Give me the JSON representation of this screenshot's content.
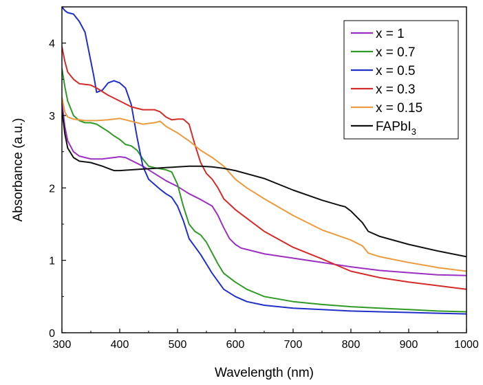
{
  "chart_data": {
    "type": "line",
    "title": "",
    "xlabel": "Wavelength (nm)",
    "ylabel": "Absorbance (a.u.)",
    "xlim": [
      300,
      1000
    ],
    "ylim": [
      0,
      4.5
    ],
    "x_ticks": [
      300,
      400,
      500,
      600,
      700,
      800,
      900,
      1000
    ],
    "y_ticks": [
      0,
      1,
      2,
      3,
      4
    ],
    "grid": false,
    "legend_position": "top-right",
    "series": [
      {
        "name": "x = 1",
        "color": "#9b2fc1",
        "points": [
          [
            300,
            3.18
          ],
          [
            305,
            2.85
          ],
          [
            310,
            2.65
          ],
          [
            320,
            2.5
          ],
          [
            330,
            2.44
          ],
          [
            340,
            2.42
          ],
          [
            350,
            2.4
          ],
          [
            360,
            2.4
          ],
          [
            370,
            2.4
          ],
          [
            380,
            2.41
          ],
          [
            390,
            2.42
          ],
          [
            400,
            2.43
          ],
          [
            410,
            2.42
          ],
          [
            420,
            2.38
          ],
          [
            440,
            2.3
          ],
          [
            460,
            2.2
          ],
          [
            480,
            2.1
          ],
          [
            500,
            2.02
          ],
          [
            520,
            1.92
          ],
          [
            540,
            1.84
          ],
          [
            560,
            1.75
          ],
          [
            570,
            1.62
          ],
          [
            580,
            1.45
          ],
          [
            590,
            1.3
          ],
          [
            600,
            1.22
          ],
          [
            610,
            1.17
          ],
          [
            630,
            1.13
          ],
          [
            650,
            1.09
          ],
          [
            700,
            1.03
          ],
          [
            750,
            0.97
          ],
          [
            800,
            0.91
          ],
          [
            850,
            0.86
          ],
          [
            900,
            0.83
          ],
          [
            950,
            0.8
          ],
          [
            1000,
            0.79
          ]
        ]
      },
      {
        "name": "x = 0.7",
        "color": "#2e9a25",
        "points": [
          [
            300,
            3.65
          ],
          [
            305,
            3.4
          ],
          [
            310,
            3.2
          ],
          [
            320,
            3.0
          ],
          [
            330,
            2.93
          ],
          [
            340,
            2.9
          ],
          [
            350,
            2.9
          ],
          [
            360,
            2.88
          ],
          [
            370,
            2.83
          ],
          [
            380,
            2.78
          ],
          [
            390,
            2.72
          ],
          [
            400,
            2.67
          ],
          [
            410,
            2.6
          ],
          [
            420,
            2.58
          ],
          [
            430,
            2.52
          ],
          [
            440,
            2.4
          ],
          [
            450,
            2.3
          ],
          [
            460,
            2.28
          ],
          [
            480,
            2.25
          ],
          [
            490,
            2.22
          ],
          [
            500,
            2.05
          ],
          [
            510,
            1.75
          ],
          [
            520,
            1.5
          ],
          [
            530,
            1.4
          ],
          [
            540,
            1.35
          ],
          [
            550,
            1.25
          ],
          [
            560,
            1.1
          ],
          [
            570,
            0.95
          ],
          [
            580,
            0.82
          ],
          [
            600,
            0.7
          ],
          [
            620,
            0.6
          ],
          [
            650,
            0.5
          ],
          [
            700,
            0.43
          ],
          [
            750,
            0.39
          ],
          [
            800,
            0.36
          ],
          [
            850,
            0.34
          ],
          [
            900,
            0.32
          ],
          [
            950,
            0.3
          ],
          [
            1000,
            0.29
          ]
        ]
      },
      {
        "name": "x = 0.5",
        "color": "#1f2fc8",
        "points": [
          [
            300,
            4.5
          ],
          [
            305,
            4.45
          ],
          [
            310,
            4.42
          ],
          [
            320,
            4.4
          ],
          [
            330,
            4.3
          ],
          [
            340,
            4.15
          ],
          [
            345,
            3.95
          ],
          [
            350,
            3.75
          ],
          [
            355,
            3.55
          ],
          [
            360,
            3.32
          ],
          [
            370,
            3.35
          ],
          [
            380,
            3.45
          ],
          [
            390,
            3.48
          ],
          [
            400,
            3.45
          ],
          [
            410,
            3.38
          ],
          [
            420,
            3.15
          ],
          [
            430,
            2.7
          ],
          [
            440,
            2.3
          ],
          [
            450,
            2.12
          ],
          [
            460,
            2.05
          ],
          [
            470,
            1.98
          ],
          [
            480,
            1.92
          ],
          [
            490,
            1.87
          ],
          [
            500,
            1.75
          ],
          [
            510,
            1.55
          ],
          [
            520,
            1.3
          ],
          [
            540,
            1.08
          ],
          [
            560,
            0.82
          ],
          [
            580,
            0.6
          ],
          [
            600,
            0.5
          ],
          [
            620,
            0.43
          ],
          [
            650,
            0.38
          ],
          [
            700,
            0.34
          ],
          [
            750,
            0.32
          ],
          [
            800,
            0.3
          ],
          [
            850,
            0.29
          ],
          [
            900,
            0.28
          ],
          [
            950,
            0.27
          ],
          [
            1000,
            0.26
          ]
        ]
      },
      {
        "name": "x = 0.3",
        "color": "#d42a28",
        "points": [
          [
            300,
            3.95
          ],
          [
            305,
            3.75
          ],
          [
            310,
            3.6
          ],
          [
            320,
            3.5
          ],
          [
            330,
            3.44
          ],
          [
            340,
            3.43
          ],
          [
            350,
            3.42
          ],
          [
            360,
            3.38
          ],
          [
            380,
            3.28
          ],
          [
            400,
            3.2
          ],
          [
            420,
            3.12
          ],
          [
            440,
            3.08
          ],
          [
            460,
            3.08
          ],
          [
            470,
            3.05
          ],
          [
            480,
            2.98
          ],
          [
            490,
            2.94
          ],
          [
            500,
            2.95
          ],
          [
            510,
            2.95
          ],
          [
            520,
            2.88
          ],
          [
            530,
            2.6
          ],
          [
            540,
            2.35
          ],
          [
            550,
            2.2
          ],
          [
            560,
            2.12
          ],
          [
            570,
            2.0
          ],
          [
            580,
            1.85
          ],
          [
            600,
            1.7
          ],
          [
            620,
            1.58
          ],
          [
            650,
            1.4
          ],
          [
            700,
            1.18
          ],
          [
            750,
            1.02
          ],
          [
            800,
            0.85
          ],
          [
            850,
            0.76
          ],
          [
            900,
            0.7
          ],
          [
            950,
            0.65
          ],
          [
            1000,
            0.6
          ]
        ]
      },
      {
        "name": "x = 0.15",
        "color": "#eb9a3c",
        "points": [
          [
            300,
            3.25
          ],
          [
            305,
            3.05
          ],
          [
            310,
            2.98
          ],
          [
            320,
            2.95
          ],
          [
            340,
            2.93
          ],
          [
            360,
            2.93
          ],
          [
            380,
            2.94
          ],
          [
            400,
            2.96
          ],
          [
            420,
            2.92
          ],
          [
            440,
            2.88
          ],
          [
            460,
            2.9
          ],
          [
            470,
            2.92
          ],
          [
            480,
            2.85
          ],
          [
            500,
            2.76
          ],
          [
            520,
            2.65
          ],
          [
            540,
            2.52
          ],
          [
            560,
            2.42
          ],
          [
            580,
            2.3
          ],
          [
            600,
            2.12
          ],
          [
            620,
            2.0
          ],
          [
            650,
            1.85
          ],
          [
            700,
            1.62
          ],
          [
            750,
            1.42
          ],
          [
            800,
            1.28
          ],
          [
            820,
            1.2
          ],
          [
            830,
            1.1
          ],
          [
            850,
            1.05
          ],
          [
            900,
            0.97
          ],
          [
            950,
            0.9
          ],
          [
            1000,
            0.85
          ]
        ]
      },
      {
        "name": "FAPbI3",
        "name_main": "FAPbI",
        "name_sub": "3",
        "color": "#111111",
        "points": [
          [
            300,
            3.08
          ],
          [
            305,
            2.75
          ],
          [
            310,
            2.55
          ],
          [
            320,
            2.42
          ],
          [
            330,
            2.37
          ],
          [
            350,
            2.35
          ],
          [
            370,
            2.3
          ],
          [
            380,
            2.27
          ],
          [
            390,
            2.24
          ],
          [
            400,
            2.24
          ],
          [
            420,
            2.25
          ],
          [
            440,
            2.26
          ],
          [
            460,
            2.27
          ],
          [
            480,
            2.28
          ],
          [
            500,
            2.29
          ],
          [
            520,
            2.3
          ],
          [
            540,
            2.3
          ],
          [
            560,
            2.29
          ],
          [
            580,
            2.27
          ],
          [
            600,
            2.24
          ],
          [
            650,
            2.13
          ],
          [
            700,
            1.97
          ],
          [
            750,
            1.83
          ],
          [
            780,
            1.76
          ],
          [
            790,
            1.74
          ],
          [
            800,
            1.68
          ],
          [
            820,
            1.52
          ],
          [
            830,
            1.4
          ],
          [
            850,
            1.33
          ],
          [
            900,
            1.22
          ],
          [
            950,
            1.13
          ],
          [
            1000,
            1.05
          ]
        ]
      }
    ]
  }
}
